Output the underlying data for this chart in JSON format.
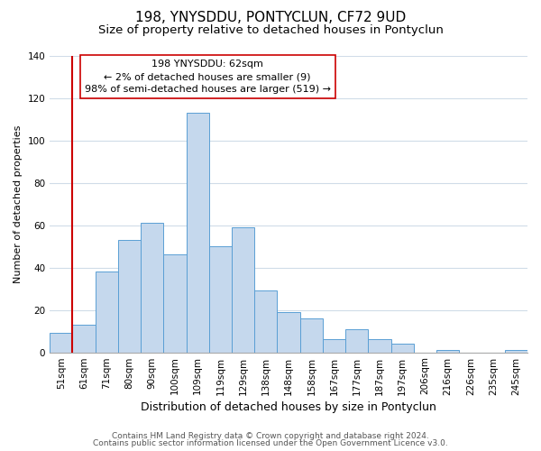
{
  "title": "198, YNYSDDU, PONTYCLUN, CF72 9UD",
  "subtitle": "Size of property relative to detached houses in Pontyclun",
  "xlabel": "Distribution of detached houses by size in Pontyclun",
  "ylabel": "Number of detached properties",
  "bar_labels": [
    "51sqm",
    "61sqm",
    "71sqm",
    "80sqm",
    "90sqm",
    "100sqm",
    "109sqm",
    "119sqm",
    "129sqm",
    "138sqm",
    "148sqm",
    "158sqm",
    "167sqm",
    "177sqm",
    "187sqm",
    "197sqm",
    "206sqm",
    "216sqm",
    "226sqm",
    "235sqm",
    "245sqm"
  ],
  "bar_heights": [
    9,
    13,
    38,
    53,
    61,
    46,
    113,
    50,
    59,
    29,
    19,
    16,
    6,
    11,
    6,
    4,
    0,
    1,
    0,
    0,
    1
  ],
  "bar_color": "#c5d8ed",
  "bar_edge_color": "#5a9fd4",
  "vline_x_index": 1,
  "vline_color": "#cc0000",
  "ylim": [
    0,
    140
  ],
  "yticks": [
    0,
    20,
    40,
    60,
    80,
    100,
    120,
    140
  ],
  "annotation_title": "198 YNYSDDU: 62sqm",
  "annotation_line1": "← 2% of detached houses are smaller (9)",
  "annotation_line2": "98% of semi-detached houses are larger (519) →",
  "annotation_box_color": "#ffffff",
  "annotation_box_edge": "#cc0000",
  "footer_line1": "Contains HM Land Registry data © Crown copyright and database right 2024.",
  "footer_line2": "Contains public sector information licensed under the Open Government Licence v3.0.",
  "background_color": "#ffffff",
  "grid_color": "#d0dce8",
  "title_fontsize": 11,
  "subtitle_fontsize": 9.5,
  "xlabel_fontsize": 9,
  "ylabel_fontsize": 8,
  "tick_fontsize": 7.5,
  "annotation_fontsize": 8,
  "footer_fontsize": 6.5
}
